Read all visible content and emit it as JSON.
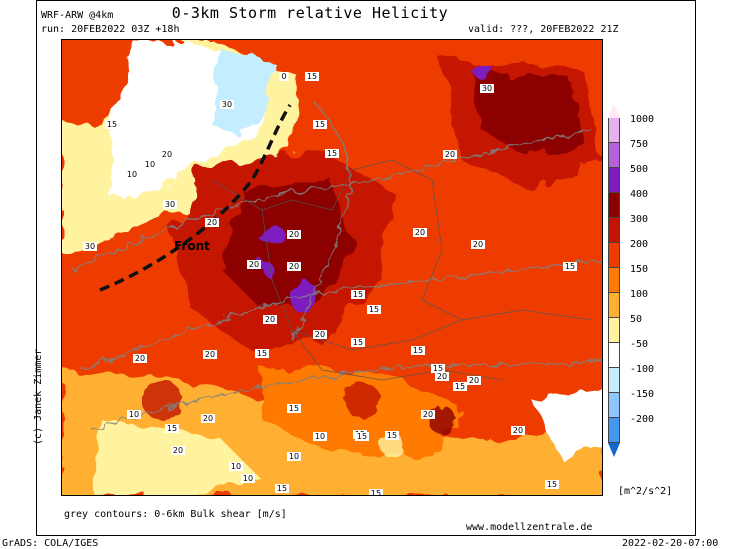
{
  "header": {
    "model": "WRF-ARW @4km",
    "title": "0-3km Storm relative Helicity",
    "run": "run: 20FEB2022 03Z +18h",
    "valid": "valid: ???, 20FEB2022 21Z"
  },
  "map": {
    "front_label": "Front",
    "contour_labels": [
      "0",
      "15",
      "15",
      "15",
      "30",
      "30",
      "20",
      "10",
      "10",
      "15",
      "20",
      "20",
      "30",
      "30",
      "15",
      "20",
      "20",
      "20",
      "20",
      "20",
      "20",
      "15",
      "15",
      "15",
      "20",
      "15",
      "20",
      "10",
      "20",
      "15",
      "20",
      "15",
      "20",
      "15",
      "20",
      "15",
      "20",
      "15",
      "10",
      "10",
      "10",
      "10",
      "15",
      "15",
      "15",
      "15",
      "20",
      "20",
      "15",
      "15"
    ],
    "colors": {
      "front": "#111111",
      "contours": "#808080"
    }
  },
  "colorbar": {
    "levels": [
      "1000",
      "750",
      "500",
      "400",
      "300",
      "200",
      "150",
      "100",
      "50",
      "-50",
      "-100",
      "-150",
      "-200"
    ],
    "colors": [
      "#ffe8f8",
      "#e7b0ec",
      "#b660d9",
      "#7d1bbf",
      "#8c0000",
      "#c41400",
      "#ee3c00",
      "#ff7a00",
      "#ffb030",
      "#fff3a0",
      "#ffffff",
      "#c4eeff",
      "#8cc8ff",
      "#4497f0",
      "#1666d0"
    ],
    "unit": "[m^2/s^2]"
  },
  "footer": {
    "contour_note": "grey contours: 0-6km Bulk shear [m/s]",
    "website": "www.modellzentrale.de",
    "credit": "(c) Janek Zimmer",
    "grads": "GrADS: COLA/IGES",
    "timestamp": "2022-02-20-07:00"
  }
}
